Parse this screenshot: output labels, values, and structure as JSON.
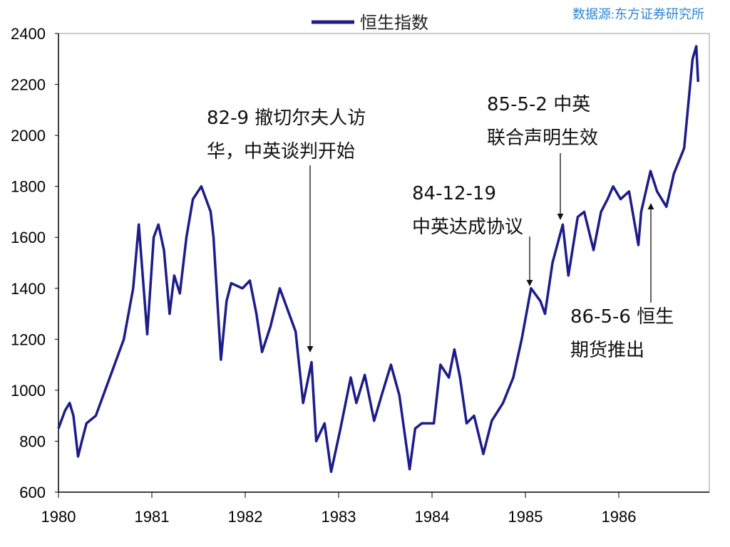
{
  "chart_data": {
    "type": "line",
    "source": "数据源:东方证券研究所",
    "x": [
      1980.0,
      1980.07,
      1980.12,
      1980.16,
      1980.21,
      1980.25,
      1980.3,
      1980.4,
      1980.5,
      1980.6,
      1980.7,
      1980.8,
      1980.86,
      1980.95,
      1981.02,
      1981.07,
      1981.13,
      1981.19,
      1981.24,
      1981.3,
      1981.37,
      1981.44,
      1981.53,
      1981.63,
      1981.66,
      1981.74,
      1981.8,
      1981.85,
      1981.97,
      1982.05,
      1982.12,
      1982.18,
      1982.27,
      1982.37,
      1982.47,
      1982.54,
      1982.62,
      1982.71,
      1982.76,
      1982.85,
      1982.92,
      1983.02,
      1983.13,
      1983.19,
      1983.28,
      1983.38,
      1983.46,
      1983.56,
      1983.65,
      1983.76,
      1983.82,
      1983.89,
      1984.02,
      1984.09,
      1984.18,
      1984.24,
      1984.3,
      1984.37,
      1984.45,
      1984.55,
      1984.64,
      1984.76,
      1984.87,
      1984.96,
      1985.06,
      1985.16,
      1985.21,
      1985.29,
      1985.4,
      1985.46,
      1985.56,
      1985.63,
      1985.73,
      1985.81,
      1985.88,
      1985.94,
      1986.02,
      1986.11,
      1986.21,
      1986.24,
      1986.34,
      1986.41,
      1986.51,
      1986.59,
      1986.7,
      1986.79,
      1986.83,
      1986.85
    ],
    "series": [
      {
        "name": "恒生指数",
        "color": "#1c1c8a",
        "values": [
          850,
          920,
          950,
          900,
          740,
          800,
          870,
          900,
          1000,
          1100,
          1200,
          1400,
          1650,
          1220,
          1600,
          1650,
          1550,
          1300,
          1450,
          1380,
          1600,
          1750,
          1800,
          1700,
          1600,
          1120,
          1350,
          1420,
          1400,
          1430,
          1300,
          1150,
          1250,
          1400,
          1300,
          1230,
          950,
          1110,
          800,
          870,
          680,
          850,
          1050,
          950,
          1060,
          880,
          980,
          1100,
          980,
          690,
          850,
          870,
          870,
          1100,
          1050,
          1160,
          1050,
          870,
          900,
          750,
          880,
          950,
          1050,
          1200,
          1400,
          1350,
          1300,
          1500,
          1650,
          1450,
          1680,
          1700,
          1550,
          1700,
          1750,
          1800,
          1750,
          1780,
          1570,
          1700,
          1860,
          1780,
          1720,
          1850,
          1950,
          2300,
          2350,
          2210
        ]
      }
    ],
    "xlim": [
      1980,
      1987
    ],
    "xticks": [
      1980,
      1981,
      1982,
      1983,
      1984,
      1985,
      1986
    ],
    "ylim": [
      600,
      2400
    ],
    "yticks": [
      600,
      800,
      1000,
      1200,
      1400,
      1600,
      1800,
      2000,
      2200,
      2400
    ],
    "grid": false,
    "annotations": [
      {
        "lines": [
          "82-9 撤切尔夫人访",
          "华，中英谈判开始"
        ]
      },
      {
        "lines": [
          "84-12-19",
          "中英达成协议"
        ]
      },
      {
        "lines": [
          "85-5-2 中英",
          "联合声明生效"
        ]
      },
      {
        "lines": [
          "86-5-6 恒生",
          "期货推出"
        ]
      }
    ]
  }
}
